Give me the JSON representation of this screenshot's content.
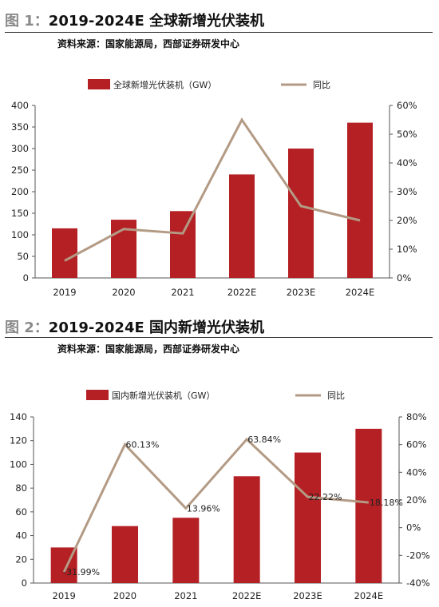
{
  "figures": [
    {
      "label": "图 1：",
      "title": "2019-2024E 全球新增光伏装机",
      "source": "资料来源：国家能源局，西部证券研发中心"
    },
    {
      "label": "图 2：",
      "title": "2019-2024E 国内新增光伏装机",
      "source": "资料来源：国家能源局，西部证券研发中心"
    }
  ],
  "colors": {
    "bar": "#b42024",
    "line": "#b39a84",
    "axis": "#555555",
    "text": "#222222"
  },
  "chart_data": [
    {
      "type": "bar",
      "categories": [
        "2019",
        "2020",
        "2021",
        "2022E",
        "2023E",
        "2024E"
      ],
      "series": [
        {
          "name": "全球新增光伏装机（GW）",
          "type": "bar",
          "axis": "left",
          "values": [
            115,
            135,
            155,
            240,
            300,
            360
          ]
        },
        {
          "name": "同比",
          "type": "line",
          "axis": "right",
          "values": [
            6,
            17,
            15.5,
            55,
            25,
            20
          ]
        }
      ],
      "ylim": [
        0,
        400
      ],
      "yticks": [
        "0",
        "50",
        "100",
        "150",
        "200",
        "250",
        "300",
        "350",
        "400"
      ],
      "ylim_right": [
        0,
        60
      ],
      "yticks_right": [
        "0%",
        "10%",
        "20%",
        "30%",
        "40%",
        "50%",
        "60%"
      ],
      "data_labels": [],
      "legend_position": "top"
    },
    {
      "type": "bar",
      "categories": [
        "2019",
        "2020",
        "2021",
        "2022E",
        "2023E",
        "2024E"
      ],
      "series": [
        {
          "name": "国内新增光伏装机（GW）",
          "type": "bar",
          "axis": "left",
          "values": [
            30,
            48,
            55,
            90,
            110,
            130
          ]
        },
        {
          "name": "同比",
          "type": "line",
          "axis": "right",
          "values": [
            -31.99,
            60.13,
            13.96,
            63.84,
            22.22,
            18.18
          ]
        }
      ],
      "ylim": [
        0,
        140
      ],
      "yticks": [
        "0",
        "20",
        "40",
        "60",
        "80",
        "100",
        "120",
        "140"
      ],
      "ylim_right": [
        -40,
        80
      ],
      "yticks_right": [
        "-40%",
        "-20%",
        "0%",
        "20%",
        "40%",
        "60%",
        "80%"
      ],
      "data_labels": [
        "-31.99%",
        "60.13%",
        "13.96%",
        "63.84%",
        "22.22%",
        "18.18%"
      ],
      "legend_position": "top"
    }
  ]
}
